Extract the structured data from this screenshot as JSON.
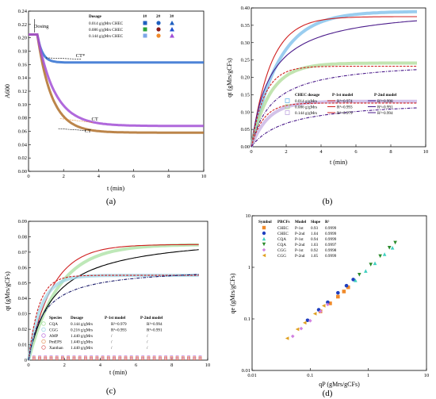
{
  "chart_data": [
    {
      "id": "a",
      "type": "line",
      "panel_label": "(a)",
      "xlabel": "t (min)",
      "ylabel": "A600",
      "xlim": [
        0,
        10
      ],
      "ylim": [
        0,
        0.24
      ],
      "xticks": [
        "0",
        "2",
        "4",
        "6",
        "8",
        "10"
      ],
      "yticks": [
        "0.00",
        "0.02",
        "0.04",
        "0.06",
        "0.08",
        "0.10",
        "0.12",
        "0.14",
        "0.16",
        "0.18",
        "0.20",
        "0.22",
        "0.24"
      ],
      "legend": {
        "dosage_header": "Dosage",
        "col_headers": [
          "1#",
          "2#",
          "3#"
        ],
        "rows": [
          {
            "label": "0.014 g/gMrs CHEC",
            "colors": [
              "#1f5fbf",
              "#1f5fbf",
              "#1f5fbf"
            ]
          },
          {
            "label": "0.086 g/gMrs CHEC",
            "colors": [
              "#2aa33a",
              "#8b1a1a",
              "#1f4fd0"
            ]
          },
          {
            "label": "0.144 g/gMrs CHEC",
            "colors": [
              "#7da6e8",
              "#f08a2a",
              "#a24fd6"
            ]
          }
        ]
      },
      "annotations": [
        {
          "text": "Dosing",
          "x": 0.3,
          "y": 0.215
        },
        {
          "text": "CT*",
          "x": 2.7,
          "y": 0.171
        },
        {
          "text": "CT",
          "x": 3.6,
          "y": 0.076
        },
        {
          "text": "CT",
          "x": 3.2,
          "y": 0.058
        }
      ],
      "series": [
        {
          "name": "0.014 g/gMrs CHEC",
          "color": "#2f6fd0",
          "plateau": 0.205,
          "final": 0.163,
          "k": 3.5
        },
        {
          "name": "0.086 g/gMrs CHEC",
          "color": "#b0702a",
          "plateau": 0.205,
          "final": 0.058,
          "k": 1.2
        },
        {
          "name": "0.144 g/gMrs CHEC",
          "color": "#a24fd6",
          "plateau": 0.205,
          "final": 0.068,
          "k": 1.0
        }
      ]
    },
    {
      "id": "b",
      "type": "scatter",
      "panel_label": "(b)",
      "xlabel": "t (min)",
      "ylabel": "qt (gMrs/gCFs)",
      "xlim": [
        0,
        10
      ],
      "ylim": [
        0,
        0.4
      ],
      "xticks": [
        "0",
        "2",
        "4",
        "6",
        "8",
        "10"
      ],
      "yticks": [
        "0.00",
        "0.05",
        "0.10",
        "0.15",
        "0.20",
        "0.25",
        "0.30",
        "0.35",
        "0.40"
      ],
      "legend": {
        "headers": [
          "CHEC dosage",
          "P-1st model",
          "P-2nd model"
        ],
        "rows": [
          {
            "label": "0.014 g/gMrs",
            "r1": "R²=0.974",
            "r2": "R²=0.998"
          },
          {
            "label": "0.086 g/gMrs",
            "r1": "R²=0.993",
            "r2": "R²=0.991"
          },
          {
            "label": "0.144 g/gMrs",
            "r1": "R²=0.979",
            "r2": "R²=0.994"
          }
        ]
      },
      "series": [
        {
          "name": "0.014 g/gMrs",
          "color": "#6fb8e8",
          "qe": 0.375,
          "k": 0.75
        },
        {
          "name": "0.086 g/gMrs",
          "color": "#a8d890",
          "qe": 0.232,
          "k": 1.1
        },
        {
          "name": "0.144 g/gMrs",
          "color": "#c0a8e0",
          "qe": 0.126,
          "k": 1.2
        }
      ]
    },
    {
      "id": "c",
      "type": "scatter",
      "panel_label": "(c)",
      "xlabel": "t (min)",
      "ylabel": "qt (gMrs/gCFs)",
      "xlim": [
        0,
        10
      ],
      "ylim": [
        0,
        0.09
      ],
      "xticks": [
        "0",
        "2",
        "4",
        "6",
        "8",
        "10"
      ],
      "yticks": [
        "0",
        "0.01",
        "0.02",
        "0.03",
        "0.04",
        "0.05",
        "0.06",
        "0.07",
        "0.08",
        "0.09"
      ],
      "legend": {
        "headers": [
          "Species",
          "Dosage",
          "P-1st model",
          "P-2nd model"
        ],
        "rows": [
          {
            "species": "CQA",
            "dosage": "0.144 g/gMrs",
            "r1": "R²=0.979",
            "r2": "R²=0.994"
          },
          {
            "species": "CGG",
            "dosage": "0.216 g/gMrs",
            "r1": "R²=0.993",
            "r2": "R²=0.991"
          },
          {
            "species": "AMP",
            "dosage": "1.440 g/gMrs",
            "r1": "/",
            "r2": "/"
          },
          {
            "species": "PmEPS",
            "dosage": "1.440 g/gMrs",
            "r1": "/",
            "r2": "/"
          },
          {
            "species": "Xanthan",
            "dosage": "1.440 g/gMrs",
            "r1": "/",
            "r2": "/"
          }
        ]
      },
      "series": [
        {
          "name": "CQA",
          "color": "#a8e0a0",
          "qe": 0.075,
          "k": 0.6
        },
        {
          "name": "CGG",
          "color": "#9fd6e8",
          "qe": 0.055,
          "k": 1.4
        },
        {
          "name": "AMP",
          "color": "#c07be0",
          "value": 0.002
        },
        {
          "name": "PmEPS",
          "color": "#e8a070",
          "value": 0.0015
        },
        {
          "name": "Xanthan",
          "color": "#e07070",
          "value": 0.001
        }
      ]
    },
    {
      "id": "d",
      "type": "scatter",
      "panel_label": "(d)",
      "xlabel": "qP (gMrs/gCFs)",
      "ylabel": "qe (gMrs/gCFs)",
      "xscale": "log",
      "yscale": "log",
      "xlim": [
        0.01,
        10
      ],
      "ylim": [
        0.01,
        10
      ],
      "xticks": [
        "0.01",
        "0.1",
        "1",
        "10"
      ],
      "yticks": [
        "0.01",
        "0.1",
        "1",
        "10"
      ],
      "legend": {
        "headers": [
          "Symbol",
          "PBCFs",
          "Model",
          "Slope",
          "R²"
        ],
        "rows": [
          {
            "pbcfs": "CHEC",
            "model": "P-1st",
            "slope": "0.93",
            "r2": "0.9999",
            "color": "#f08a2a",
            "shape": "square"
          },
          {
            "pbcfs": "CHEC",
            "model": "P-2nd",
            "slope": "1.04",
            "r2": "0.9999",
            "color": "#1f3fbf",
            "shape": "circle"
          },
          {
            "pbcfs": "CQA",
            "model": "P-1st",
            "slope": "0.94",
            "r2": "0.9999",
            "color": "#3fd0c0",
            "shape": "triangle-up"
          },
          {
            "pbcfs": "CQA",
            "model": "P-2nd",
            "slope": "1.03",
            "r2": "0.9997",
            "color": "#2a8a2a",
            "shape": "triangle-down"
          },
          {
            "pbcfs": "CGG",
            "model": "P-1st",
            "slope": "0.92",
            "r2": "0.9998",
            "color": "#d080e0",
            "shape": "diamond"
          },
          {
            "pbcfs": "CGG",
            "model": "P-2nd",
            "slope": "1.05",
            "r2": "0.9999",
            "color": "#e0a020",
            "shape": "triangle-left"
          }
        ]
      },
      "points": [
        {
          "s": 0,
          "x": [
            0.15,
            0.22,
            0.3,
            0.38,
            0.45
          ],
          "y": [
            0.14,
            0.2,
            0.27,
            0.34,
            0.41
          ]
        },
        {
          "s": 1,
          "x": [
            0.09,
            0.14,
            0.2,
            0.3,
            0.42,
            0.55
          ],
          "y": [
            0.094,
            0.15,
            0.21,
            0.32,
            0.44,
            0.58
          ]
        },
        {
          "s": 2,
          "x": [
            0.6,
            0.9,
            1.3,
            1.9,
            2.6
          ],
          "y": [
            0.56,
            0.85,
            1.2,
            1.8,
            2.4
          ]
        },
        {
          "s": 3,
          "x": [
            0.7,
            1.1,
            1.6,
            2.3,
            2.9
          ],
          "y": [
            0.72,
            1.13,
            1.65,
            2.4,
            3.0
          ]
        },
        {
          "s": 4,
          "x": [
            0.05,
            0.07,
            0.1,
            0.15,
            0.2
          ],
          "y": [
            0.046,
            0.065,
            0.092,
            0.14,
            0.19
          ]
        },
        {
          "s": 5,
          "x": [
            0.04,
            0.06,
            0.08,
            0.12,
            0.17
          ],
          "y": [
            0.042,
            0.063,
            0.084,
            0.126,
            0.18
          ]
        }
      ]
    }
  ]
}
